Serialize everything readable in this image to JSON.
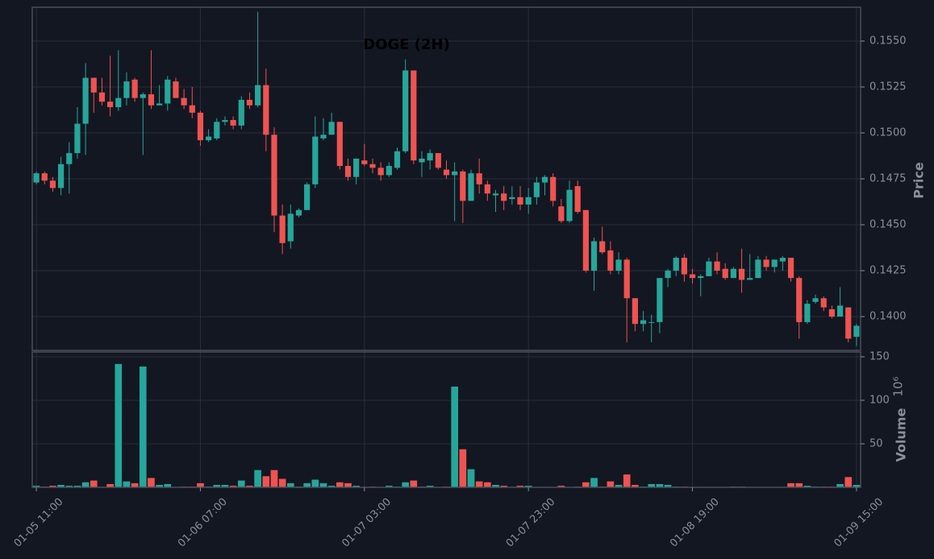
{
  "chart_data": {
    "type": "candlestick",
    "title": "DOGE (2H)",
    "y_label": "Price",
    "volume_label": "Volume",
    "volume_offset_label": "10⁶",
    "up_color": "#26a69a",
    "down_color": "#ef5350",
    "grid": true,
    "categories": [
      "01-05 11:00",
      null,
      null,
      null,
      null,
      null,
      null,
      null,
      null,
      null,
      null,
      null,
      null,
      null,
      null,
      null,
      null,
      null,
      null,
      null,
      "01-06 07:00",
      null,
      null,
      null,
      null,
      null,
      null,
      null,
      null,
      null,
      null,
      null,
      null,
      null,
      null,
      null,
      null,
      null,
      null,
      null,
      "01-07 03:00",
      null,
      null,
      null,
      null,
      null,
      null,
      null,
      null,
      null,
      null,
      null,
      null,
      null,
      null,
      null,
      null,
      null,
      null,
      null,
      "01-07 23:00",
      null,
      null,
      null,
      null,
      null,
      null,
      null,
      null,
      null,
      null,
      null,
      null,
      null,
      null,
      null,
      null,
      null,
      null,
      null,
      "01-08 19:00",
      null,
      null,
      null,
      null,
      null,
      null,
      null,
      null,
      null,
      null,
      null,
      null,
      null,
      null,
      null,
      null,
      null,
      null,
      null,
      "01-09 15:00"
    ],
    "open": [
      0.1473,
      0.1478,
      0.1474,
      0.147,
      0.1483,
      0.1489,
      0.1505,
      0.153,
      0.1522,
      0.1517,
      0.1514,
      0.1519,
      0.1529,
      0.1519,
      0.1521,
      0.1515,
      0.1516,
      0.1528,
      0.1519,
      0.1515,
      0.1511,
      0.1496,
      0.1497,
      0.1506,
      0.1507,
      0.1504,
      0.1518,
      0.1515,
      0.1526,
      0.1499,
      0.1455,
      0.1441,
      0.1455,
      0.1458,
      0.1472,
      0.1497,
      0.1499,
      0.1506,
      0.1482,
      0.1476,
      0.1485,
      0.1483,
      0.1481,
      0.1477,
      0.1481,
      0.149,
      0.1534,
      0.1484,
      0.1485,
      0.1489,
      0.148,
      0.1477,
      0.1479,
      0.1463,
      0.1478,
      0.1472,
      0.1466,
      0.1467,
      0.1464,
      0.1465,
      0.1461,
      0.1465,
      0.1473,
      0.1476,
      0.146,
      0.1452,
      0.1471,
      0.1458,
      0.1425,
      0.1441,
      0.1436,
      0.1425,
      0.1431,
      0.141,
      0.1396,
      0.1397,
      0.1397,
      0.1421,
      0.1425,
      0.1432,
      0.1423,
      0.1421,
      0.1422,
      0.143,
      0.1426,
      0.1421,
      0.1426,
      0.142,
      0.1421,
      0.1431,
      0.1427,
      0.143,
      0.1432,
      0.1421,
      0.1397,
      0.1408,
      0.141,
      0.1404,
      0.14,
      0.1405,
      0.1389
    ],
    "high": [
      0.1479,
      0.1479,
      0.1476,
      0.1487,
      0.1495,
      0.1514,
      0.1538,
      0.153,
      0.153,
      0.1542,
      0.1545,
      0.1533,
      0.153,
      0.1522,
      0.1545,
      0.1526,
      0.1531,
      0.153,
      0.1524,
      0.1525,
      0.1512,
      0.1502,
      0.1508,
      0.1509,
      0.1509,
      0.152,
      0.1522,
      0.1566,
      0.1535,
      0.1503,
      0.1461,
      0.1461,
      0.1459,
      0.1473,
      0.1509,
      0.1508,
      0.1511,
      0.1506,
      0.1486,
      0.1486,
      0.1494,
      0.1486,
      0.1484,
      0.1484,
      0.1492,
      0.154,
      0.1534,
      0.149,
      0.1491,
      0.1489,
      0.1485,
      0.1484,
      0.148,
      0.148,
      0.1486,
      0.1474,
      0.1469,
      0.1471,
      0.1471,
      0.1471,
      0.147,
      0.1476,
      0.1477,
      0.1478,
      0.1464,
      0.1474,
      0.1474,
      0.1458,
      0.1443,
      0.1449,
      0.1441,
      0.1435,
      0.1432,
      0.141,
      0.1403,
      0.1401,
      0.1421,
      0.1426,
      0.1433,
      0.1434,
      0.1426,
      0.1423,
      0.1432,
      0.1435,
      0.1429,
      0.1427,
      0.1437,
      0.1434,
      0.1433,
      0.1433,
      0.1431,
      0.1433,
      0.1432,
      0.1422,
      0.1409,
      0.1412,
      0.1411,
      0.1406,
      0.1416,
      0.1405,
      0.1396
    ],
    "low": [
      0.1472,
      0.1472,
      0.1468,
      0.1466,
      0.1467,
      0.1486,
      0.1488,
      0.1511,
      0.1515,
      0.1509,
      0.1512,
      0.1515,
      0.1517,
      0.1488,
      0.1513,
      0.1515,
      0.1512,
      0.1519,
      0.1513,
      0.1508,
      0.1493,
      0.1495,
      0.1496,
      0.1504,
      0.1502,
      0.1502,
      0.1513,
      0.1514,
      0.149,
      0.1446,
      0.1434,
      0.1437,
      0.1454,
      0.1458,
      0.147,
      0.1496,
      0.1499,
      0.148,
      0.1474,
      0.1472,
      0.1482,
      0.1478,
      0.1474,
      0.1476,
      0.148,
      0.1489,
      0.1483,
      0.1476,
      0.148,
      0.148,
      0.1475,
      0.1452,
      0.1451,
      0.1463,
      0.1467,
      0.1463,
      0.1457,
      0.1458,
      0.1461,
      0.1458,
      0.1456,
      0.1461,
      0.1466,
      0.146,
      0.1451,
      0.1451,
      0.1456,
      0.1424,
      0.1414,
      0.1434,
      0.1423,
      0.1423,
      0.1386,
      0.1392,
      0.1392,
      0.1386,
      0.1391,
      0.1416,
      0.1422,
      0.1419,
      0.1418,
      0.1411,
      0.1422,
      0.1423,
      0.142,
      0.1421,
      0.1413,
      0.142,
      0.1421,
      0.1425,
      0.1424,
      0.1425,
      0.1419,
      0.1388,
      0.1396,
      0.1407,
      0.1403,
      0.1399,
      0.14,
      0.1386,
      0.1384
    ],
    "close": [
      0.1478,
      0.1474,
      0.147,
      0.1483,
      0.1489,
      0.1505,
      0.153,
      0.1522,
      0.1517,
      0.1514,
      0.1519,
      0.1528,
      0.1519,
      0.1521,
      0.1515,
      0.1516,
      0.1529,
      0.1519,
      0.1515,
      0.1511,
      0.1496,
      0.1498,
      0.1506,
      0.1507,
      0.1504,
      0.1518,
      0.1515,
      0.1526,
      0.1499,
      0.1455,
      0.144,
      0.1456,
      0.1458,
      0.1472,
      0.1498,
      0.1499,
      0.1506,
      0.1482,
      0.1476,
      0.1486,
      0.1483,
      0.1481,
      0.1477,
      0.1482,
      0.149,
      0.1534,
      0.1485,
      0.1486,
      0.1489,
      0.1481,
      0.1477,
      0.1479,
      0.1463,
      0.1478,
      0.1472,
      0.1467,
      0.1467,
      0.1463,
      0.1465,
      0.1461,
      0.1465,
      0.1473,
      0.1476,
      0.1463,
      0.1452,
      0.1469,
      0.1457,
      0.1425,
      0.1441,
      0.1435,
      0.1425,
      0.1431,
      0.141,
      0.1396,
      0.1398,
      0.1397,
      0.1421,
      0.1425,
      0.1432,
      0.1423,
      0.1421,
      0.1422,
      0.143,
      0.1425,
      0.1421,
      0.1426,
      0.142,
      0.1421,
      0.1431,
      0.1427,
      0.1431,
      0.1432,
      0.1421,
      0.1397,
      0.1407,
      0.141,
      0.1405,
      0.14,
      0.1406,
      0.1388,
      0.1395
    ],
    "volume": [
      2,
      1,
      2,
      3,
      2,
      2,
      6,
      8,
      0.5,
      4,
      142,
      7,
      5,
      139,
      11,
      3,
      4,
      0.5,
      1,
      1,
      5,
      1,
      3,
      3,
      2,
      8,
      2,
      20,
      13,
      20,
      10,
      5,
      1,
      5,
      9,
      5,
      2,
      6,
      5,
      2,
      0.5,
      1,
      0.5,
      2,
      1,
      6,
      8,
      1,
      2,
      0.5,
      1,
      116,
      44,
      21,
      7,
      6,
      3,
      2,
      0.5,
      2,
      2,
      0.5,
      0.5,
      0.5,
      2,
      0.5,
      1,
      6,
      11,
      1,
      7,
      3,
      15,
      3,
      1,
      4,
      4,
      3,
      1,
      1,
      0.5,
      0.5,
      0.3,
      0.5,
      0.5,
      1,
      1,
      0.3,
      0.3,
      0.3,
      0.3,
      0.5,
      5,
      5,
      2,
      1,
      1,
      1,
      4,
      12,
      3
    ],
    "ylim": [
      0.13816,
      0.15684
    ],
    "yticks": [
      0.1525,
      0.1475,
      0.1425,
      {
        "value": 0.155,
        "label": "0.1550"
      },
      {
        "value": 0.15,
        "label": "0.1500"
      },
      {
        "value": 0.145,
        "label": "0.1450"
      },
      {
        "value": 0.14,
        "label": "0.1400"
      }
    ],
    "volume_ylim": [
      0,
      155.5
    ],
    "volume_yticks": [
      50,
      100,
      150
    ]
  }
}
